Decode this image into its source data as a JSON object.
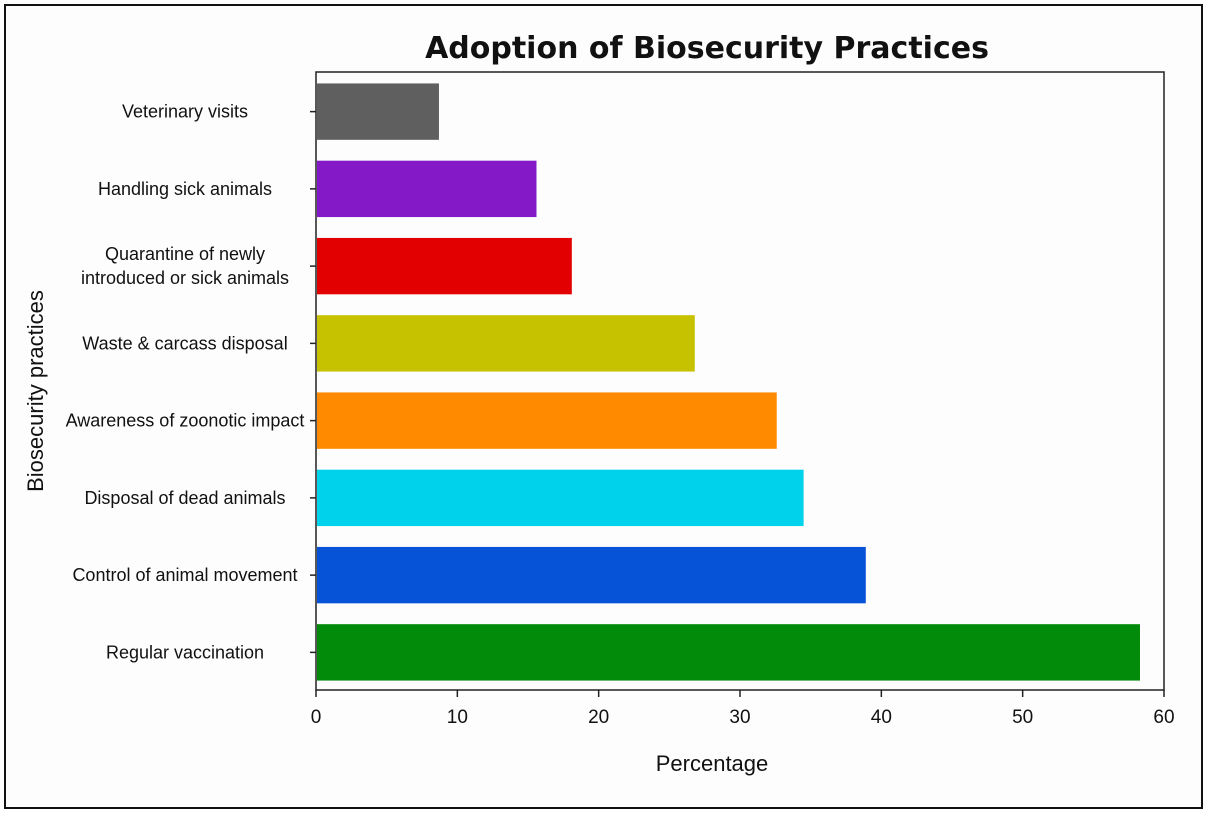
{
  "chart_data": {
    "type": "bar",
    "orientation": "horizontal",
    "title": "Adoption of Biosecurity Practices",
    "xlabel": "Percentage",
    "ylabel": "Biosecurity practices",
    "xlim": [
      0,
      60
    ],
    "xticks": [
      0,
      10,
      20,
      30,
      40,
      50,
      60
    ],
    "grid": false,
    "legend": "none",
    "categories": [
      [
        "Veterinary visits"
      ],
      [
        "Handling sick animals"
      ],
      [
        "Quarantine of newly",
        "introduced or sick animals"
      ],
      [
        "Waste & carcass disposal"
      ],
      [
        "Awareness of zoonotic impact"
      ],
      [
        "Disposal of dead animals"
      ],
      [
        "Control of animal movement"
      ],
      [
        "Regular vaccination"
      ]
    ],
    "values": [
      8.7,
      15.6,
      18.1,
      26.8,
      32.6,
      34.5,
      38.9,
      58.3
    ],
    "colors": [
      "#5f5f5f",
      "#8419c8",
      "#e30000",
      "#c6c200",
      "#ff8a00",
      "#00d2eb",
      "#0753d8",
      "#028a0a"
    ]
  }
}
